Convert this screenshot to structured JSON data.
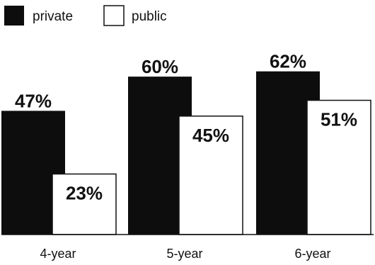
{
  "chart_data": {
    "type": "bar",
    "categories": [
      "4-year",
      "5-year",
      "6-year"
    ],
    "series": [
      {
        "name": "private",
        "values": [
          47,
          60,
          62
        ],
        "labels": [
          "47%",
          "60%",
          "62%"
        ],
        "color": "#0d0d0d"
      },
      {
        "name": "public",
        "values": [
          23,
          45,
          51
        ],
        "labels": [
          "23%",
          "45%",
          "51%"
        ],
        "color": "#ffffff"
      }
    ],
    "title": "",
    "xlabel": "",
    "ylabel": "",
    "ylim": [
      0,
      70
    ],
    "grid": false,
    "legend": "top-left"
  }
}
